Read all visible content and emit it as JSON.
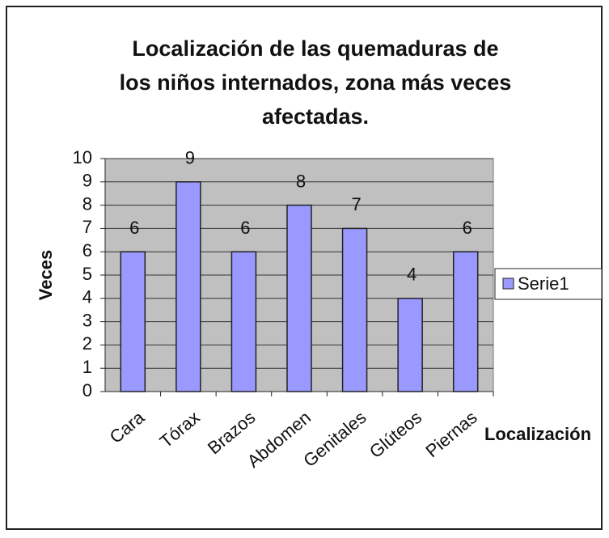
{
  "chart_data": {
    "type": "bar",
    "title": [
      "Localización de las quemaduras de",
      "los niños internados, zona más veces",
      "afectadas."
    ],
    "categories": [
      "Cara",
      "Tórax",
      "Brazos",
      "Abdomen",
      "Genitales",
      "Glúteos",
      "Piernas"
    ],
    "series": [
      {
        "name": "Serie1",
        "color": "#9999ff",
        "values": [
          6,
          9,
          6,
          8,
          7,
          4,
          6
        ]
      }
    ],
    "ylim": [
      0,
      10
    ],
    "yticks": [
      0,
      1,
      2,
      3,
      4,
      5,
      6,
      7,
      8,
      9,
      10
    ],
    "grid": true,
    "y_label": "Veces",
    "x_label": "Localización",
    "legend": "right"
  }
}
